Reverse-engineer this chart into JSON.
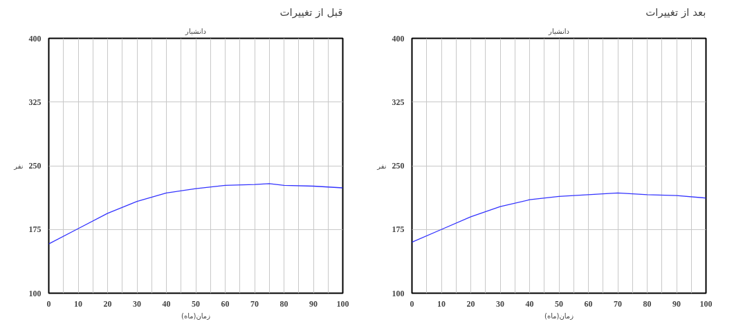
{
  "chart_data": [
    {
      "type": "line",
      "title": "دانشیار",
      "annotations": [
        "قبل از تغییرات"
      ],
      "xlabel": "زمان(ماه)",
      "ylabel": "نفر",
      "x": [
        0,
        10,
        20,
        30,
        40,
        50,
        60,
        70,
        75,
        80,
        90,
        100
      ],
      "series": [
        {
          "color": "#3333ff",
          "values": [
            158,
            176,
            194,
            208,
            218,
            223,
            227,
            228,
            229,
            227,
            226,
            224
          ]
        }
      ],
      "xlim": [
        0,
        100
      ],
      "ylim": [
        100,
        400
      ],
      "xticks": [
        0,
        {
          "value": 5,
          "label": null
        },
        10,
        {
          "value": 15,
          "label": null
        },
        20,
        {
          "value": 25,
          "label": null
        },
        30,
        {
          "value": 35,
          "label": null
        },
        40,
        {
          "value": 45,
          "label": null
        },
        50,
        {
          "value": 55,
          "label": null
        },
        60,
        {
          "value": 65,
          "label": null
        },
        70,
        {
          "value": 75,
          "label": null
        },
        80,
        {
          "value": 85,
          "label": null
        },
        90,
        {
          "value": 95,
          "label": null
        },
        100
      ],
      "yticks": [
        100,
        175,
        250,
        325,
        400
      ],
      "grid": true,
      "marker": "none",
      "line_style": "solid"
    },
    {
      "type": "line",
      "title": "دانشیار",
      "annotations": [
        "بعد از تغییرات"
      ],
      "xlabel": "زمان(ماه)",
      "ylabel": "نفر",
      "x": [
        0,
        10,
        20,
        30,
        40,
        50,
        60,
        70,
        80,
        90,
        100
      ],
      "series": [
        {
          "color": "#3333ff",
          "values": [
            160,
            175,
            190,
            202,
            210,
            214,
            216,
            218,
            216,
            215,
            212
          ]
        }
      ],
      "xlim": [
        0,
        100
      ],
      "ylim": [
        100,
        400
      ],
      "xticks": [
        0,
        {
          "value": 5,
          "label": null
        },
        10,
        {
          "value": 15,
          "label": null
        },
        20,
        {
          "value": 25,
          "label": null
        },
        30,
        {
          "value": 35,
          "label": null
        },
        40,
        {
          "value": 45,
          "label": null
        },
        50,
        {
          "value": 55,
          "label": null
        },
        60,
        {
          "value": 65,
          "label": null
        },
        70,
        {
          "value": 75,
          "label": null
        },
        80,
        {
          "value": 85,
          "label": null
        },
        90,
        {
          "value": 95,
          "label": null
        },
        100
      ],
      "yticks": [
        100,
        175,
        250,
        325,
        400
      ],
      "grid": true,
      "marker": "none",
      "line_style": "solid"
    }
  ]
}
